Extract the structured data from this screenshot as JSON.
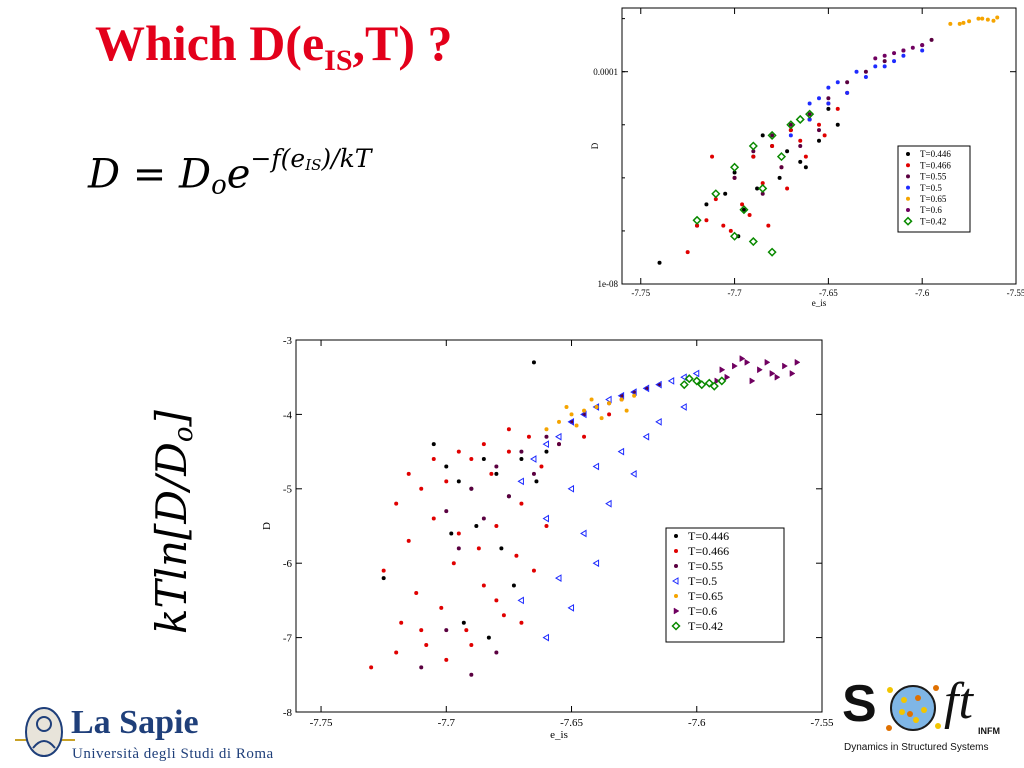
{
  "title": {
    "main": "Which D(e",
    "sub": "IS",
    "tail": ",T) ?"
  },
  "formula": {
    "lhs": "D",
    "eq": " = ",
    "d0": "D",
    "d0_sub": "o",
    "e": "e",
    "exp_a": "−f(e",
    "exp_sub": "IS",
    "exp_b": ")/kT"
  },
  "side_label": "kTln[D/D",
  "side_label_sub": "o",
  "side_label_close": "]",
  "colors": {
    "title": "#e3001b",
    "T0446": "#000000",
    "T0466": "#e00000",
    "T055": "#5a0040",
    "T05": "#1e2bff",
    "T065": "#f5a400",
    "T06": "#700060",
    "T042": "#0a8a00"
  },
  "logo_left": {
    "name": "La Sapie",
    "subtitle": "Università degli Studi di Roma"
  },
  "logo_right": {
    "s": "S",
    "ft": "ft",
    "infm": "INFM",
    "tagline": "Dynamics in Structured Systems"
  },
  "chart_data": [
    {
      "type": "scatter",
      "title": "",
      "xlabel": "e_is",
      "ylabel": "D",
      "xlim": [
        -7.76,
        -7.55
      ],
      "ylim_log10": [
        -8,
        -2.8
      ],
      "y_scale": "log",
      "x_ticks": [
        "-7.75",
        "-7.7",
        "-7.65",
        "-7.6",
        "-7.55"
      ],
      "x_tick_values": [
        -7.75,
        -7.7,
        -7.65,
        -7.6,
        -7.55
      ],
      "y_ticks": [
        "0.0001",
        "1e-08"
      ],
      "y_tick_values_log10": [
        -4,
        -8
      ],
      "legend_position": "bottom-right",
      "series": [
        {
          "name": "T=0.446",
          "color": "#000000",
          "marker": "dot",
          "x": [
            -7.72,
            -7.715,
            -7.705,
            -7.7,
            -7.698,
            -7.69,
            -7.688,
            -7.68,
            -7.676,
            -7.67,
            -7.665,
            -7.66,
            -7.655,
            -7.65,
            -7.645,
            -7.74,
            -7.695,
            -7.685,
            -7.672,
            -7.662
          ],
          "y": [
            -6.9,
            -6.5,
            -6.3,
            -5.9,
            -7.1,
            -5.6,
            -6.2,
            -5.4,
            -6.0,
            -5.1,
            -5.7,
            -4.9,
            -5.3,
            -4.7,
            -5.0,
            -7.6,
            -6.6,
            -5.2,
            -5.5,
            -5.8
          ]
        },
        {
          "name": "T=0.466",
          "color": "#e00000",
          "marker": "dot",
          "x": [
            -7.725,
            -7.72,
            -7.715,
            -7.71,
            -7.706,
            -7.7,
            -7.696,
            -7.69,
            -7.685,
            -7.68,
            -7.675,
            -7.67,
            -7.665,
            -7.66,
            -7.655,
            -7.65,
            -7.645,
            -7.64,
            -7.712,
            -7.702,
            -7.692,
            -7.682,
            -7.672,
            -7.662,
            -7.652
          ],
          "y": [
            -7.4,
            -6.9,
            -6.8,
            -6.4,
            -6.9,
            -6.0,
            -6.5,
            -5.6,
            -6.1,
            -5.4,
            -5.8,
            -5.1,
            -5.3,
            -4.9,
            -5.0,
            -4.6,
            -4.7,
            -4.4,
            -5.6,
            -7.0,
            -6.7,
            -6.9,
            -6.2,
            -5.6,
            -5.2
          ]
        },
        {
          "name": "T=0.55",
          "color": "#5a0040",
          "marker": "dot",
          "x": [
            -7.7,
            -7.69,
            -7.68,
            -7.67,
            -7.66,
            -7.65,
            -7.64,
            -7.63,
            -7.62,
            -7.61,
            -7.6,
            -7.595,
            -7.685,
            -7.675,
            -7.665,
            -7.655
          ],
          "y": [
            -6.0,
            -5.5,
            -5.2,
            -5.0,
            -4.8,
            -4.5,
            -4.2,
            -4.0,
            -3.8,
            -3.6,
            -3.5,
            -3.4,
            -6.3,
            -5.8,
            -5.4,
            -5.1
          ]
        },
        {
          "name": "T=0.5",
          "color": "#1e2bff",
          "marker": "dot",
          "x": [
            -7.67,
            -7.66,
            -7.65,
            -7.64,
            -7.63,
            -7.62,
            -7.615,
            -7.61,
            -7.6,
            -7.655,
            -7.645,
            -7.635,
            -7.625,
            -7.66,
            -7.65
          ],
          "y": [
            -5.2,
            -4.9,
            -4.6,
            -4.4,
            -4.1,
            -3.9,
            -3.8,
            -3.7,
            -3.6,
            -4.5,
            -4.2,
            -4.0,
            -3.9,
            -4.6,
            -4.3
          ]
        },
        {
          "name": "T=0.65",
          "color": "#f5a400",
          "marker": "dot",
          "x": [
            -7.58,
            -7.575,
            -7.57,
            -7.565,
            -7.56,
            -7.585,
            -7.578,
            -7.568,
            -7.562
          ],
          "y": [
            -3.1,
            -3.05,
            -3.0,
            -3.02,
            -2.98,
            -3.1,
            -3.08,
            -3.0,
            -3.04
          ]
        },
        {
          "name": "T=0.6",
          "color": "#700060",
          "marker": "dot",
          "x": [
            -7.62,
            -7.615,
            -7.61,
            -7.605,
            -7.6,
            -7.625
          ],
          "y": [
            -3.7,
            -3.65,
            -3.6,
            -3.55,
            -3.5,
            -3.75
          ]
        },
        {
          "name": "T=0.42",
          "color": "#0a8a00",
          "marker": "diamond",
          "x": [
            -7.72,
            -7.71,
            -7.7,
            -7.695,
            -7.69,
            -7.685,
            -7.68,
            -7.675,
            -7.67,
            -7.665,
            -7.66,
            -7.7,
            -7.69,
            -7.68
          ],
          "y": [
            -6.8,
            -6.3,
            -5.8,
            -6.6,
            -5.4,
            -6.2,
            -5.2,
            -5.6,
            -5.0,
            -4.9,
            -4.8,
            -7.1,
            -7.2,
            -7.4
          ]
        }
      ]
    },
    {
      "type": "scatter",
      "title": "",
      "xlabel": "e_is",
      "ylabel": "D",
      "xlim": [
        -7.76,
        -7.55
      ],
      "ylim": [
        -8,
        -3
      ],
      "x_ticks": [
        "-7.75",
        "-7.7",
        "-7.65",
        "-7.6",
        "-7.55"
      ],
      "x_tick_values": [
        -7.75,
        -7.7,
        -7.65,
        -7.6,
        -7.55
      ],
      "y_ticks": [
        "-3",
        "-4",
        "-5",
        "-6",
        "-7",
        "-8"
      ],
      "y_tick_values": [
        -3,
        -4,
        -5,
        -6,
        -7,
        -8
      ],
      "legend_position": "bottom-right",
      "series": [
        {
          "name": "T=0.446",
          "color": "#000000",
          "marker": "dot",
          "x": [
            -7.725,
            -7.705,
            -7.7,
            -7.695,
            -7.69,
            -7.688,
            -7.685,
            -7.68,
            -7.675,
            -7.67,
            -7.665,
            -7.66,
            -7.693,
            -7.683,
            -7.673,
            -7.698,
            -7.678,
            -7.664
          ],
          "y": [
            -6.2,
            -4.4,
            -4.7,
            -4.9,
            -5.0,
            -5.5,
            -4.6,
            -4.8,
            -5.1,
            -4.6,
            -3.3,
            -4.5,
            -6.8,
            -7.0,
            -6.3,
            -5.6,
            -5.8,
            -4.9
          ]
        },
        {
          "name": "T=0.466",
          "color": "#e00000",
          "marker": "dot",
          "x": [
            -7.73,
            -7.725,
            -7.72,
            -7.718,
            -7.715,
            -7.712,
            -7.71,
            -7.708,
            -7.705,
            -7.702,
            -7.7,
            -7.697,
            -7.695,
            -7.692,
            -7.69,
            -7.687,
            -7.685,
            -7.682,
            -7.68,
            -7.677,
            -7.675,
            -7.672,
            -7.67,
            -7.667,
            -7.665,
            -7.662,
            -7.66,
            -7.655,
            -7.65,
            -7.645,
            -7.64,
            -7.635,
            -7.63,
            -7.72,
            -7.71,
            -7.7,
            -7.69,
            -7.68,
            -7.67,
            -7.715,
            -7.705,
            -7.695,
            -7.685,
            -7.675
          ],
          "y": [
            -7.4,
            -6.1,
            -5.2,
            -6.8,
            -5.7,
            -6.4,
            -5.0,
            -7.1,
            -5.4,
            -6.6,
            -4.9,
            -6.0,
            -5.6,
            -6.9,
            -4.6,
            -5.8,
            -6.3,
            -4.8,
            -5.5,
            -6.7,
            -4.5,
            -5.9,
            -5.2,
            -4.3,
            -6.1,
            -4.7,
            -5.5,
            -4.4,
            -4.1,
            -4.3,
            -3.9,
            -4.0,
            -3.8,
            -7.2,
            -6.9,
            -7.3,
            -7.1,
            -6.5,
            -6.8,
            -4.8,
            -4.6,
            -4.5,
            -4.4,
            -4.2
          ]
        },
        {
          "name": "T=0.55",
          "color": "#5a0040",
          "marker": "dot",
          "x": [
            -7.7,
            -7.69,
            -7.68,
            -7.67,
            -7.66,
            -7.65,
            -7.645,
            -7.64,
            -7.635,
            -7.63,
            -7.625,
            -7.62,
            -7.615,
            -7.695,
            -7.685,
            -7.675,
            -7.665,
            -7.655,
            -7.71,
            -7.7,
            -7.69,
            -7.68
          ],
          "y": [
            -5.3,
            -5.0,
            -4.7,
            -4.5,
            -4.3,
            -4.1,
            -4.0,
            -3.9,
            -3.85,
            -3.75,
            -3.7,
            -3.65,
            -3.6,
            -5.8,
            -5.4,
            -5.1,
            -4.8,
            -4.4,
            -7.4,
            -6.9,
            -7.5,
            -7.2
          ]
        },
        {
          "name": "T=0.5",
          "color": "#1e2bff",
          "marker": "triangle",
          "x": [
            -7.67,
            -7.665,
            -7.66,
            -7.655,
            -7.65,
            -7.645,
            -7.64,
            -7.635,
            -7.63,
            -7.625,
            -7.62,
            -7.615,
            -7.61,
            -7.605,
            -7.6,
            -7.66,
            -7.65,
            -7.64,
            -7.63,
            -7.62,
            -7.655,
            -7.645,
            -7.635,
            -7.625,
            -7.67,
            -7.66,
            -7.65,
            -7.64,
            -7.615,
            -7.605
          ],
          "y": [
            -4.9,
            -4.6,
            -4.4,
            -4.3,
            -4.1,
            -4.0,
            -3.9,
            -3.8,
            -3.75,
            -3.7,
            -3.65,
            -3.6,
            -3.55,
            -3.5,
            -3.45,
            -5.4,
            -5.0,
            -4.7,
            -4.5,
            -4.3,
            -6.2,
            -5.6,
            -5.2,
            -4.8,
            -6.5,
            -7.0,
            -6.6,
            -6.0,
            -4.1,
            -3.9
          ]
        },
        {
          "name": "T=0.65",
          "color": "#f5a400",
          "marker": "dot",
          "x": [
            -7.66,
            -7.655,
            -7.65,
            -7.645,
            -7.64,
            -7.635,
            -7.63,
            -7.625,
            -7.648,
            -7.638,
            -7.628,
            -7.652,
            -7.642
          ],
          "y": [
            -4.2,
            -4.1,
            -4.0,
            -3.95,
            -3.9,
            -3.85,
            -3.8,
            -3.75,
            -4.15,
            -4.05,
            -3.95,
            -3.9,
            -3.8
          ]
        },
        {
          "name": "T=0.6",
          "color": "#700060",
          "marker": "triangle-right",
          "x": [
            -7.59,
            -7.585,
            -7.58,
            -7.575,
            -7.57,
            -7.565,
            -7.56,
            -7.588,
            -7.578,
            -7.568,
            -7.582,
            -7.572,
            -7.562,
            -7.592
          ],
          "y": [
            -3.4,
            -3.35,
            -3.3,
            -3.4,
            -3.45,
            -3.35,
            -3.3,
            -3.5,
            -3.55,
            -3.5,
            -3.25,
            -3.3,
            -3.45,
            -3.55
          ]
        },
        {
          "name": "T=0.42",
          "color": "#0a8a00",
          "marker": "diamond",
          "x": [
            -7.605,
            -7.6,
            -7.598,
            -7.595,
            -7.59,
            -7.603,
            -7.593
          ],
          "y": [
            -3.6,
            -3.55,
            -3.6,
            -3.58,
            -3.55,
            -3.52,
            -3.62
          ]
        }
      ]
    }
  ]
}
